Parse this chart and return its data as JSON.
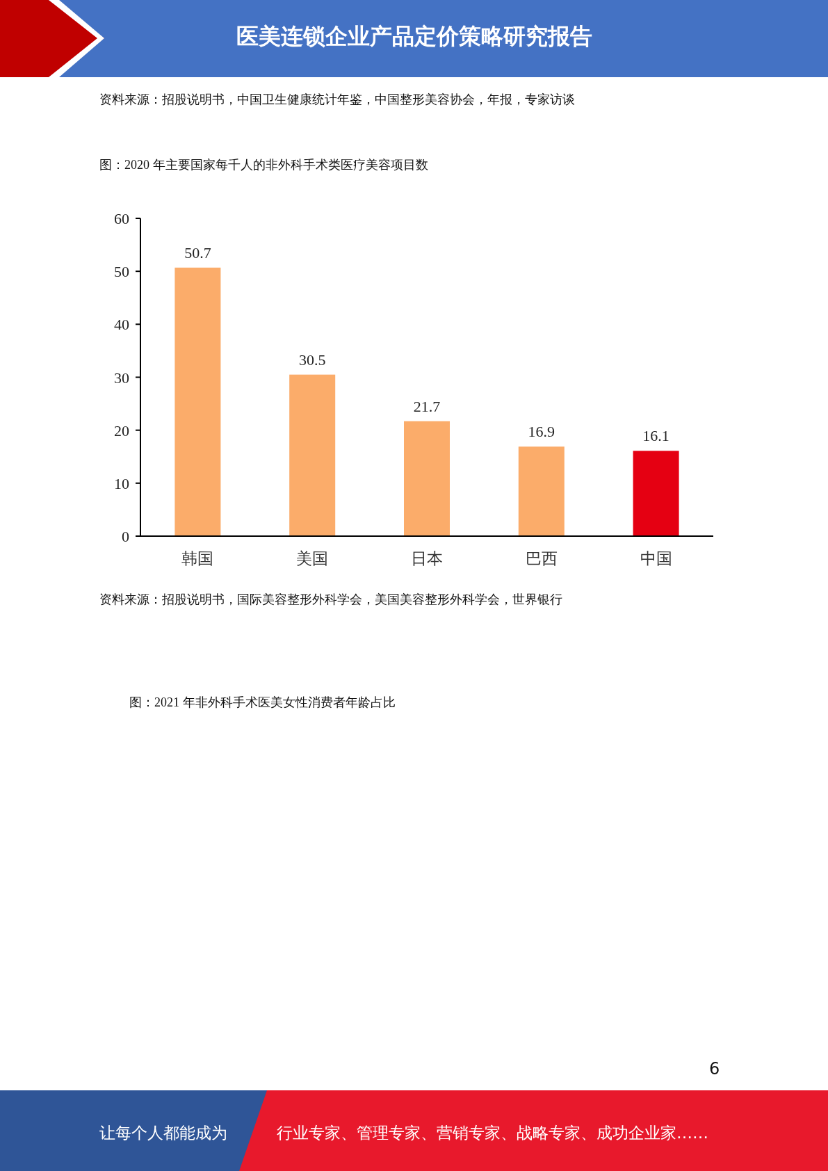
{
  "chart_data": {
    "type": "bar",
    "title": "图：2020 年主要国家每千人的非外科手术类医疗美容项目数",
    "categories": [
      "韩国",
      "美国",
      "日本",
      "巴西",
      "中国"
    ],
    "values": [
      50.7,
      30.5,
      21.7,
      16.9,
      16.1
    ],
    "colors": [
      "#fbac6a",
      "#fbac6a",
      "#fbac6a",
      "#fbac6a",
      "#e50012"
    ],
    "ylim": [
      0,
      60
    ],
    "yticks": [
      0,
      10,
      20,
      30,
      40,
      50,
      60
    ],
    "data_labels": true,
    "grid": false,
    "annotations": [
      "医美连锁企业产品定价策略研究报告",
      "资料来源：招股说明书，中国卫生健康统计年鉴，中国整形美容协会，年报，专家访谈",
      "资料来源：招股说明书，国际美容整形外科学会，美国美容整形外科学会，世界银行",
      "图：2021 年非外科手术医美女性消费者年龄占比",
      "6",
      "让每个人都能成为",
      "行业专家、管理专家、营销专家、战略专家、成功企业家……"
    ]
  }
}
